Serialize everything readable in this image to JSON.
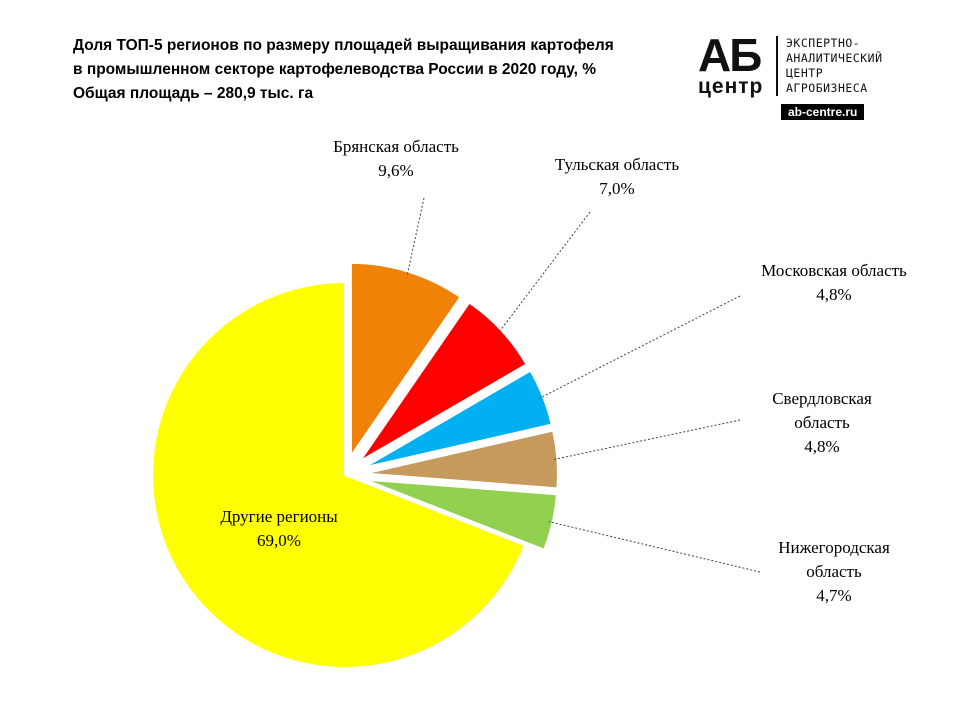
{
  "title_lines": [
    "Доля ТОП-5 регионов по размеру площадей выращивания картофеля",
    "в промышленном секторе картофелеводства России в 2020 году, %",
    "Общая площадь – 280,9 тыс. га"
  ],
  "logo": {
    "mark_top": "АБ",
    "mark_bottom": "центр",
    "text_lines": [
      "ЭКСПЕРТНО-",
      "АНАЛИТИЧЕСКИЙ",
      "ЦЕНТР",
      "АГРОБИЗНЕСА"
    ],
    "url": "ab-centre.ru"
  },
  "chart_data": {
    "type": "pie",
    "title": "Доля ТОП-5 регионов по размеру площадей выращивания картофеля в промышленном секторе картофелеводства России в 2020 году, %",
    "slices": [
      {
        "label_lines": [
          "Брянская область"
        ],
        "value": 9.6,
        "value_text": "9,6%",
        "color": "#F08208"
      },
      {
        "label_lines": [
          "Тульская область"
        ],
        "value": 7.0,
        "value_text": "7,0%",
        "color": "#FF0000"
      },
      {
        "label_lines": [
          "Московская область"
        ],
        "value": 4.8,
        "value_text": "4,8%",
        "color": "#00B0F0"
      },
      {
        "label_lines": [
          "Свердловская",
          "область"
        ],
        "value": 4.8,
        "value_text": "4,8%",
        "color": "#C59A5C"
      },
      {
        "label_lines": [
          "Нижегородская",
          "область"
        ],
        "value": 4.7,
        "value_text": "4,7%",
        "color": "#92D050"
      },
      {
        "label_lines": [
          "Другие регионы"
        ],
        "value": 69.0,
        "value_text": "69,0%",
        "color": "#FFFF00"
      }
    ]
  }
}
